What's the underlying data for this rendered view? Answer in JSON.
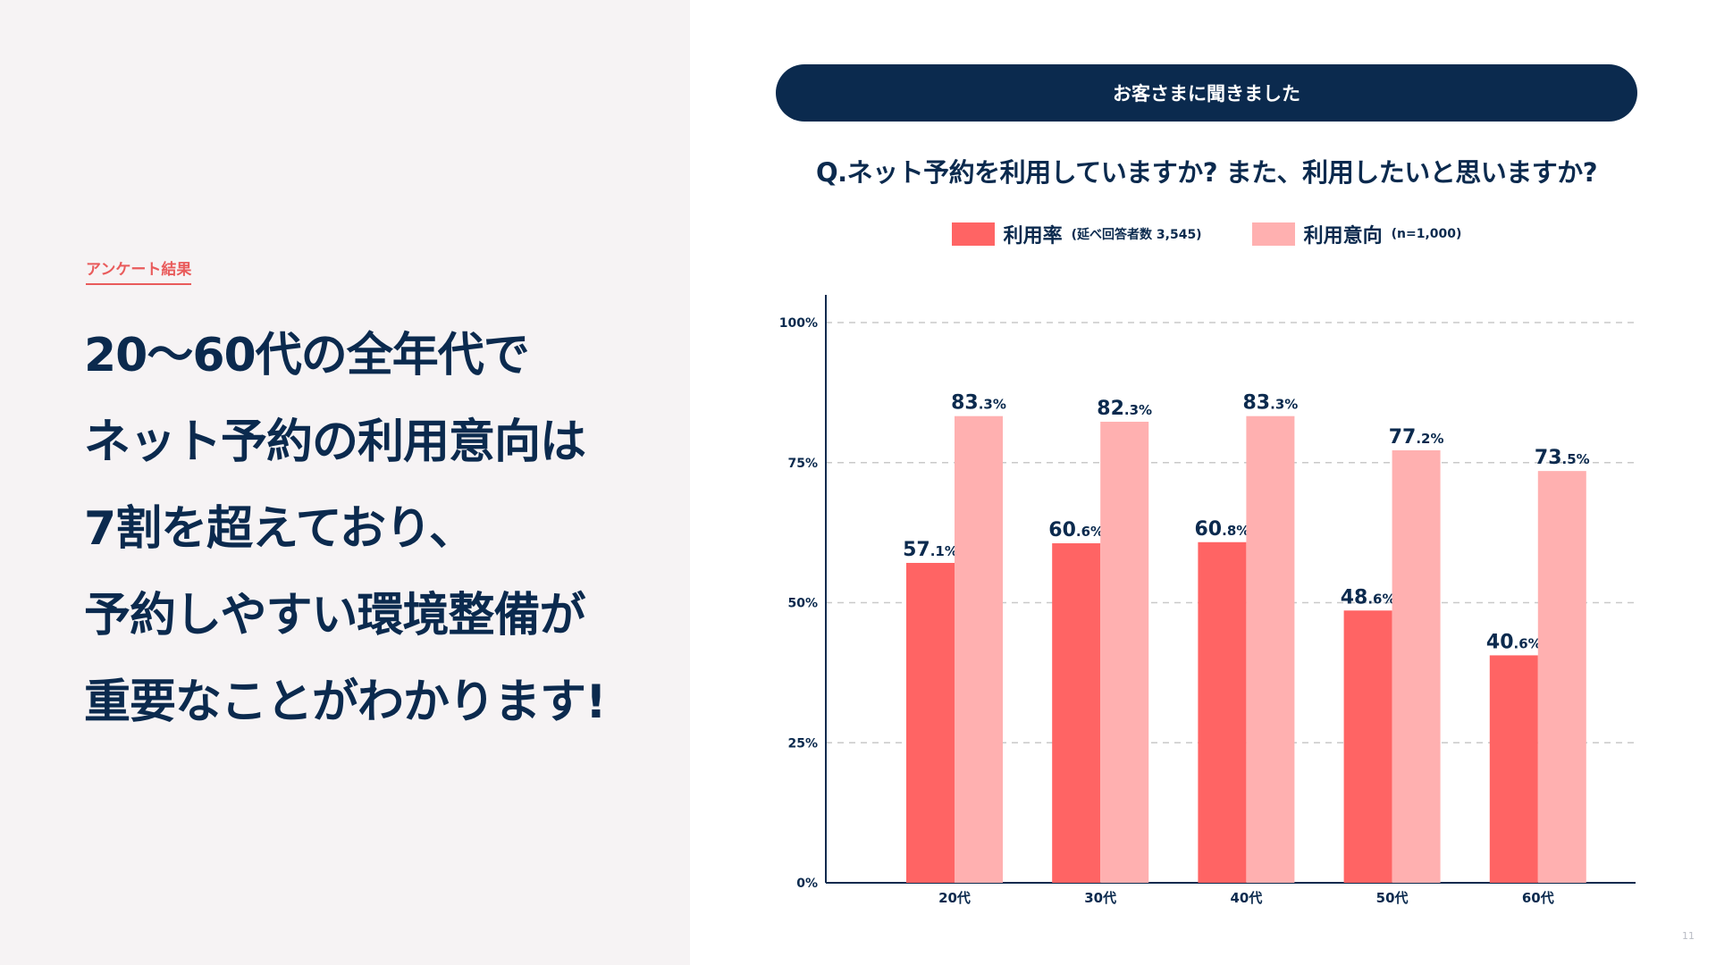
{
  "left": {
    "tag": "アンケート結果",
    "headline_lines": [
      "20〜60代の全年代で",
      "ネット予約の利用意向は",
      "7割を超えており、",
      "予約しやすい環境整備が",
      "重要なことがわかります!"
    ]
  },
  "header": {
    "pill_label": "お客さまに聞きました",
    "question": "Q.ネット予約を利用していますか? また、利用したいと思いますか?"
  },
  "legend": [
    {
      "label": "利用率",
      "note": "(延べ回答者数 3,545)",
      "color": "#ff6464"
    },
    {
      "label": "利用意向",
      "note": "(n=1,000)",
      "color": "#ffb0b0"
    }
  ],
  "chart_data": {
    "type": "bar",
    "categories": [
      "20代",
      "30代",
      "40代",
      "50代",
      "60代"
    ],
    "series": [
      {
        "name": "利用率",
        "values": [
          57.1,
          60.6,
          60.8,
          48.6,
          40.6
        ],
        "color": "#ff6464"
      },
      {
        "name": "利用意向",
        "values": [
          83.3,
          82.3,
          83.3,
          77.2,
          73.5
        ],
        "color": "#ffb0b0"
      }
    ],
    "ylim": [
      0,
      100
    ],
    "yticks": [
      0,
      25,
      50,
      75,
      100
    ],
    "ytick_labels": [
      "0%",
      "25%",
      "50%",
      "75%",
      "100%"
    ],
    "grid": true,
    "legend_position": "top-center",
    "axis_color": "#0b2a4e",
    "grid_color": "#c9c9c9"
  },
  "page_number": "11"
}
